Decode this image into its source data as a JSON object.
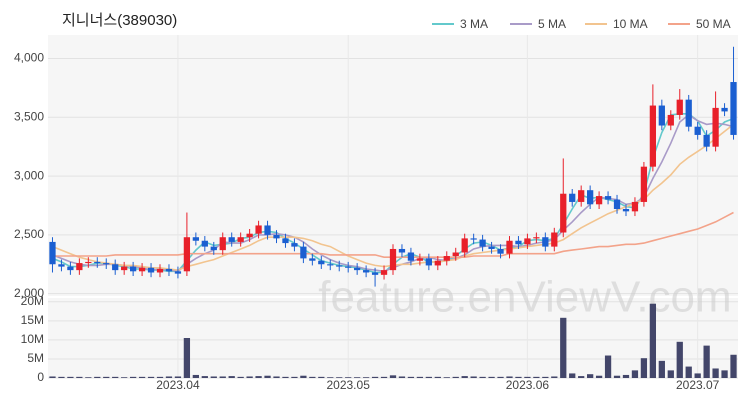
{
  "chart_data": {
    "type": "candlestick",
    "title": "지니너스(389030)",
    "watermark": "feature.enViewV.com",
    "categories": [
      null,
      null,
      null,
      null,
      null,
      null,
      null,
      null,
      null,
      null,
      null,
      null,
      null,
      null,
      "2023.04",
      null,
      null,
      null,
      null,
      null,
      null,
      null,
      null,
      null,
      null,
      null,
      null,
      null,
      null,
      null,
      null,
      null,
      null,
      "2023.05",
      null,
      null,
      null,
      null,
      null,
      null,
      null,
      null,
      null,
      null,
      null,
      null,
      null,
      null,
      null,
      null,
      null,
      null,
      null,
      "2023.06",
      null,
      null,
      null,
      null,
      null,
      null,
      null,
      null,
      null,
      null,
      null,
      null,
      null,
      null,
      null,
      null,
      null,
      null,
      "2023.07",
      null,
      null,
      null,
      null
    ],
    "open": [
      2440,
      2250,
      2230,
      2200,
      2260,
      2270,
      2260,
      2250,
      2200,
      2230,
      2190,
      2220,
      2180,
      2210,
      2190,
      2190,
      2480,
      2450,
      2400,
      2370,
      2480,
      2440,
      2480,
      2510,
      2580,
      2500,
      2470,
      2430,
      2400,
      2300,
      2280,
      2250,
      2240,
      2230,
      2220,
      2200,
      2180,
      2160,
      2200,
      2380,
      2350,
      2280,
      2300,
      2240,
      2280,
      2320,
      2350,
      2470,
      2460,
      2400,
      2380,
      2340,
      2450,
      2420,
      2470,
      2480,
      2400,
      2520,
      2850,
      2780,
      2880,
      2760,
      2830,
      2800,
      2720,
      2700,
      2780,
      3080,
      3600,
      3430,
      3520,
      3650,
      3420,
      3350,
      3250,
      3580,
      3800
    ],
    "high": [
      2480,
      2290,
      2270,
      2300,
      2310,
      2310,
      2300,
      2290,
      2270,
      2270,
      2260,
      2260,
      2250,
      2250,
      2230,
      2690,
      2520,
      2490,
      2440,
      2520,
      2520,
      2520,
      2550,
      2620,
      2620,
      2540,
      2510,
      2470,
      2440,
      2340,
      2320,
      2290,
      2280,
      2270,
      2260,
      2240,
      2220,
      2240,
      2420,
      2420,
      2390,
      2340,
      2340,
      2320,
      2360,
      2390,
      2510,
      2510,
      2500,
      2440,
      2420,
      2490,
      2490,
      2510,
      2520,
      2520,
      2560,
      3150,
      2890,
      2920,
      2920,
      2870,
      2870,
      2840,
      2760,
      2820,
      3120,
      3780,
      3650,
      3560,
      3740,
      3690,
      3460,
      3390,
      3720,
      3620,
      4100
    ],
    "low": [
      2180,
      2190,
      2160,
      2160,
      2220,
      2220,
      2210,
      2160,
      2160,
      2150,
      2150,
      2140,
      2140,
      2150,
      2130,
      2150,
      2410,
      2360,
      2330,
      2330,
      2400,
      2400,
      2440,
      2470,
      2460,
      2430,
      2390,
      2360,
      2260,
      2240,
      2210,
      2200,
      2190,
      2180,
      2160,
      2140,
      2060,
      2120,
      2160,
      2310,
      2240,
      2240,
      2200,
      2200,
      2240,
      2280,
      2310,
      2420,
      2360,
      2340,
      2300,
      2300,
      2380,
      2380,
      2430,
      2360,
      2360,
      2480,
      2740,
      2740,
      2720,
      2720,
      2760,
      2680,
      2660,
      2660,
      2740,
      3040,
      3390,
      3390,
      3480,
      3380,
      3310,
      3210,
      3210,
      3510,
      3310
    ],
    "close": [
      2250,
      2230,
      2200,
      2260,
      2270,
      2260,
      2250,
      2200,
      2230,
      2190,
      2220,
      2180,
      2210,
      2190,
      2170,
      2480,
      2450,
      2400,
      2370,
      2480,
      2440,
      2480,
      2510,
      2580,
      2500,
      2470,
      2430,
      2400,
      2300,
      2280,
      2250,
      2240,
      2230,
      2220,
      2200,
      2180,
      2160,
      2200,
      2380,
      2350,
      2280,
      2300,
      2240,
      2280,
      2320,
      2350,
      2470,
      2460,
      2400,
      2380,
      2340,
      2450,
      2420,
      2470,
      2480,
      2400,
      2520,
      2850,
      2780,
      2880,
      2760,
      2830,
      2800,
      2720,
      2700,
      2780,
      3080,
      3600,
      3430,
      3520,
      3650,
      3420,
      3350,
      3250,
      3580,
      3550,
      3350
    ],
    "up_color": "#e8202a",
    "down_color": "#1b5fd1",
    "ma_series": [
      {
        "name": "3 MA",
        "color": "#63c9cc",
        "values": [
          2300,
          2270,
          2230,
          2230,
          2240,
          2260,
          2260,
          2240,
          2230,
          2210,
          2210,
          2200,
          2200,
          2190,
          2190,
          2280,
          2370,
          2440,
          2410,
          2420,
          2430,
          2470,
          2480,
          2520,
          2530,
          2520,
          2470,
          2430,
          2380,
          2330,
          2280,
          2260,
          2240,
          2230,
          2220,
          2200,
          2180,
          2180,
          2250,
          2310,
          2340,
          2310,
          2270,
          2270,
          2280,
          2320,
          2380,
          2430,
          2440,
          2410,
          2370,
          2390,
          2400,
          2450,
          2460,
          2450,
          2470,
          2590,
          2720,
          2840,
          2810,
          2820,
          2800,
          2780,
          2740,
          2730,
          2850,
          3150,
          3370,
          3520,
          3530,
          3530,
          3470,
          3340,
          3390,
          3460,
          3490
        ]
      },
      {
        "name": "5 MA",
        "color": "#a99bc8",
        "values": [
          2330,
          2300,
          2270,
          2250,
          2240,
          2240,
          2250,
          2250,
          2240,
          2230,
          2220,
          2200,
          2210,
          2200,
          2190,
          2250,
          2300,
          2340,
          2370,
          2440,
          2430,
          2430,
          2460,
          2500,
          2500,
          2510,
          2500,
          2480,
          2440,
          2380,
          2330,
          2290,
          2260,
          2240,
          2230,
          2210,
          2200,
          2190,
          2220,
          2250,
          2270,
          2300,
          2310,
          2290,
          2280,
          2300,
          2330,
          2380,
          2400,
          2410,
          2410,
          2410,
          2400,
          2410,
          2430,
          2440,
          2460,
          2540,
          2610,
          2690,
          2760,
          2820,
          2810,
          2800,
          2760,
          2770,
          2820,
          2980,
          3120,
          3280,
          3460,
          3520,
          3470,
          3440,
          3450,
          3440,
          3420
        ]
      },
      {
        "name": "10 MA",
        "color": "#f2c48f",
        "values": [
          2400,
          2370,
          2340,
          2310,
          2290,
          2270,
          2260,
          2250,
          2240,
          2240,
          2230,
          2220,
          2220,
          2210,
          2200,
          2230,
          2250,
          2270,
          2290,
          2320,
          2350,
          2380,
          2410,
          2450,
          2480,
          2480,
          2480,
          2480,
          2470,
          2450,
          2420,
          2400,
          2360,
          2320,
          2290,
          2260,
          2240,
          2230,
          2240,
          2250,
          2250,
          2260,
          2270,
          2270,
          2280,
          2290,
          2320,
          2340,
          2350,
          2360,
          2370,
          2380,
          2390,
          2400,
          2410,
          2420,
          2430,
          2460,
          2510,
          2560,
          2600,
          2640,
          2680,
          2710,
          2740,
          2770,
          2800,
          2880,
          2940,
          3010,
          3100,
          3160,
          3210,
          3260,
          3320,
          3380,
          3440
        ]
      },
      {
        "name": "50 MA",
        "color": "#f3a38a",
        "values": [
          2320,
          2320,
          2320,
          2320,
          2320,
          2320,
          2320,
          2330,
          2330,
          2330,
          2330,
          2330,
          2330,
          2330,
          2330,
          2340,
          2340,
          2340,
          2340,
          2340,
          2340,
          2340,
          2340,
          2340,
          2340,
          2340,
          2340,
          2340,
          2340,
          2340,
          2340,
          2330,
          2330,
          2330,
          2330,
          2330,
          2330,
          2310,
          2310,
          2310,
          2310,
          2310,
          2310,
          2310,
          2310,
          2310,
          2310,
          2320,
          2320,
          2320,
          2320,
          2340,
          2340,
          2340,
          2340,
          2340,
          2340,
          2360,
          2370,
          2380,
          2390,
          2400,
          2400,
          2410,
          2420,
          2420,
          2430,
          2450,
          2470,
          2490,
          2510,
          2530,
          2550,
          2580,
          2610,
          2650,
          2690
        ]
      }
    ],
    "ylim": [
      1980,
      4200
    ],
    "yticks": [
      {
        "value": 2000,
        "label": "2,000"
      },
      {
        "value": 2500,
        "label": "2,500"
      },
      {
        "value": 3000,
        "label": "3,000"
      },
      {
        "value": 3500,
        "label": "3,500"
      },
      {
        "value": 4000,
        "label": "4,000"
      }
    ],
    "volume": {
      "color": "#43466a",
      "values": [
        400000,
        300000,
        300000,
        300000,
        200000,
        300000,
        300000,
        300000,
        200000,
        300000,
        300000,
        300000,
        300000,
        400000,
        400000,
        10500000,
        800000,
        500000,
        400000,
        400000,
        500000,
        300000,
        400000,
        500000,
        600000,
        400000,
        300000,
        300000,
        600000,
        300000,
        300000,
        200000,
        200000,
        200000,
        200000,
        200000,
        300000,
        300000,
        700000,
        400000,
        300000,
        300000,
        300000,
        300000,
        200000,
        300000,
        500000,
        400000,
        300000,
        300000,
        300000,
        400000,
        300000,
        300000,
        300000,
        300000,
        400000,
        15800000,
        1200000,
        500000,
        1000000,
        600000,
        5900000,
        600000,
        800000,
        2000000,
        5200000,
        19500000,
        4500000,
        2000000,
        9500000,
        3000000,
        1200000,
        8500000,
        2500000,
        2000000,
        6100000
      ],
      "ylim": [
        0,
        21000000
      ],
      "yticks": [
        0,
        {
          "value": 5000000,
          "label": "5M"
        },
        {
          "value": 10000000,
          "label": "10M"
        },
        {
          "value": 15000000,
          "label": "15M"
        },
        {
          "value": 20000000,
          "label": "20M"
        }
      ]
    },
    "grid": true
  }
}
